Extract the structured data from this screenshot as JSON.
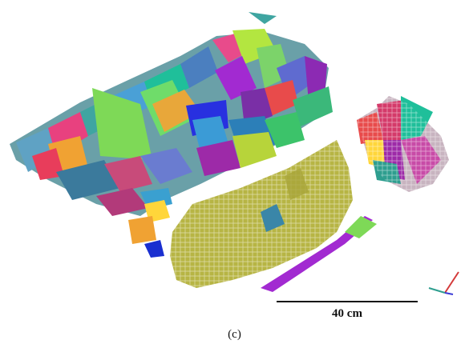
{
  "figure": {
    "scale_bar_label": "40 cm",
    "caption": "(c)",
    "axis_colors": {
      "x": "#2e9e8f",
      "y": "#3b3bd6",
      "z": "#d43a3a"
    },
    "segment_colors": [
      "#e83d8b",
      "#3fa5a1",
      "#7ed957",
      "#2c7fb8",
      "#a22ad1",
      "#b7b544",
      "#f0a233",
      "#d23f6b",
      "#1fbf9a",
      "#6a4bd9",
      "#e84b4b",
      "#8cc63f",
      "#2830e0",
      "#c84ba7",
      "#35b0e0",
      "#9d2aa8",
      "#5aa8d0",
      "#ffd63a",
      "#3b7a9c",
      "#e45fa0"
    ]
  }
}
